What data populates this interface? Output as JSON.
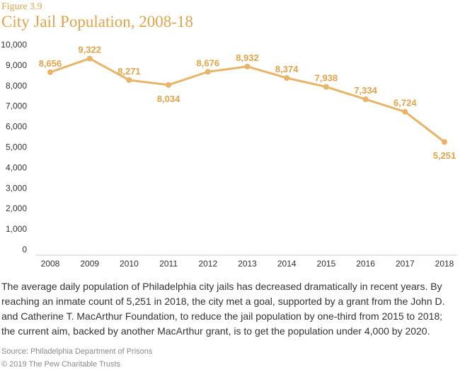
{
  "header": {
    "figure_label": "Figure 3.9",
    "title": "City Jail Population, 2008-18"
  },
  "colors": {
    "accent": "#e0a44a",
    "line": "#e8b46a",
    "text": "#333333",
    "muted": "#8a8a8a"
  },
  "chart_data": {
    "type": "line",
    "title": "City Jail Population, 2008-18",
    "xlabel": "",
    "ylabel": "",
    "categories": [
      "2008",
      "2009",
      "2010",
      "2011",
      "2012",
      "2013",
      "2014",
      "2015",
      "2016",
      "2017",
      "2018"
    ],
    "series": [
      {
        "name": "Average daily jail population",
        "values": [
          8656,
          9322,
          8271,
          8034,
          8676,
          8932,
          8374,
          7938,
          7334,
          6724,
          5251
        ],
        "labels": [
          "8,656",
          "9,322",
          "8,271",
          "8,034",
          "8,676",
          "8,932",
          "8,374",
          "7,938",
          "7,334",
          "6,724",
          "5,251"
        ]
      }
    ],
    "ylim": [
      0,
      10000
    ],
    "yticks": [
      0,
      1000,
      2000,
      3000,
      4000,
      5000,
      6000,
      7000,
      8000,
      9000,
      10000
    ],
    "ytick_labels": [
      "0",
      "1,000",
      "2,000",
      "3,000",
      "4,000",
      "5,000",
      "6,000",
      "7,000",
      "8,000",
      "9,000",
      "10,000"
    ],
    "grid": false
  },
  "caption": "The average daily population of Philadelphia city jails has decreased dramatically in recent years. By reaching an inmate count of 5,251 in 2018, the city met a goal, supported by a grant from the John D. and Catherine T. MacArthur Foundation, to reduce the jail population by one-third from 2015 to 2018; the current aim, backed by another MacArthur grant, is to get the population under 4,000 by 2020.",
  "footer": {
    "source": "Source: Philadelphia Department of Prisons",
    "copyright": "© 2019 The Pew Charitable Trusts"
  }
}
